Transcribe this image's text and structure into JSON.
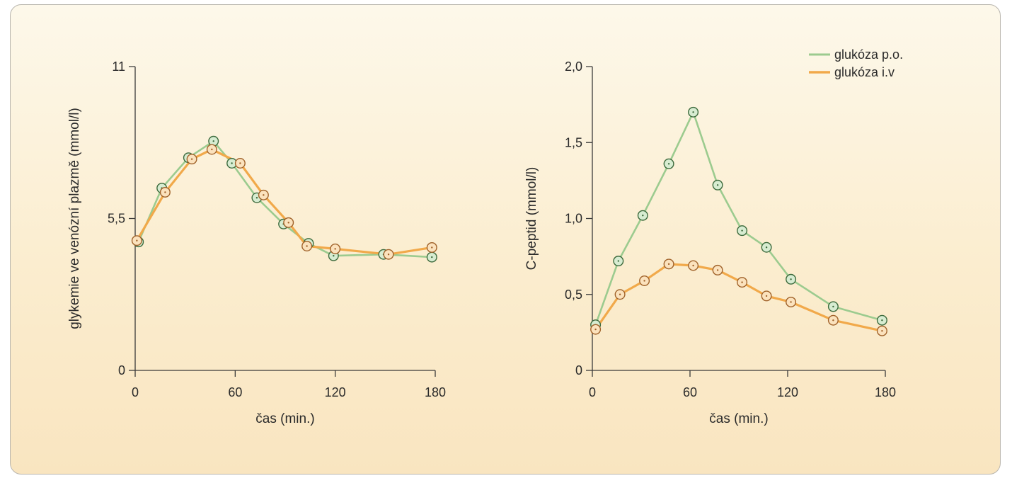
{
  "colors": {
    "po": "#9ccb8f",
    "iv": "#f1a94a",
    "po_marker_fill": "#d7ecd1",
    "po_marker_stroke": "#3c6a3c",
    "iv_marker_fill": "#fbe2bd",
    "iv_marker_stroke": "#a0622a",
    "axis": "#3a3a3a"
  },
  "legend": {
    "placement": "top-right",
    "po_label": "glukóza p.o.",
    "iv_label": "glukóza i.v"
  },
  "chart_data": [
    {
      "type": "line",
      "title": "",
      "xlabel": "čas (min.)",
      "ylabel": "glykemie ve venózní plazmě (mmol/l)",
      "xlim": [
        0,
        180
      ],
      "ylim": [
        0,
        11
      ],
      "x_ticks": [
        0,
        60,
        120,
        180
      ],
      "x_tick_labels": [
        "0",
        "60",
        "120",
        "180"
      ],
      "y_ticks": [
        0,
        5.5,
        11
      ],
      "y_tick_labels": [
        "0",
        "5,5",
        "11"
      ],
      "grid": false,
      "series": [
        {
          "name": "glukóza p.o.",
          "x": [
            2,
            16,
            32,
            47,
            58,
            73,
            89,
            104,
            119,
            149,
            178
          ],
          "y": [
            4.65,
            6.6,
            7.7,
            8.3,
            7.5,
            6.25,
            5.3,
            4.6,
            4.15,
            4.2,
            4.1
          ]
        },
        {
          "name": "glukóza i.v",
          "x": [
            1,
            18,
            34,
            46,
            63,
            77,
            92,
            103,
            120,
            152,
            178
          ],
          "y": [
            4.7,
            6.45,
            7.65,
            8.0,
            7.5,
            6.35,
            5.35,
            4.5,
            4.4,
            4.2,
            4.45
          ]
        }
      ]
    },
    {
      "type": "line",
      "title": "",
      "xlabel": "čas (min.)",
      "ylabel": "C-peptid (mmol/l)",
      "xlim": [
        0,
        180
      ],
      "ylim": [
        0,
        2.0
      ],
      "x_ticks": [
        0,
        60,
        120,
        180
      ],
      "x_tick_labels": [
        "0",
        "60",
        "120",
        "180"
      ],
      "y_ticks": [
        0,
        0.5,
        1.0,
        1.5,
        2.0
      ],
      "y_tick_labels": [
        "0",
        "0,5",
        "1,0",
        "1,5",
        "2,0"
      ],
      "grid": false,
      "series": [
        {
          "name": "glukóza p.o.",
          "x": [
            2,
            16,
            31,
            47,
            62,
            77,
            92,
            107,
            122,
            148,
            178
          ],
          "y": [
            0.3,
            0.72,
            1.02,
            1.36,
            1.7,
            1.22,
            0.92,
            0.81,
            0.6,
            0.42,
            0.33
          ]
        },
        {
          "name": "glukóza i.v",
          "x": [
            2,
            17,
            32,
            47,
            62,
            77,
            92,
            107,
            122,
            148,
            178
          ],
          "y": [
            0.27,
            0.5,
            0.59,
            0.7,
            0.69,
            0.66,
            0.58,
            0.49,
            0.45,
            0.33,
            0.26
          ]
        }
      ]
    }
  ]
}
